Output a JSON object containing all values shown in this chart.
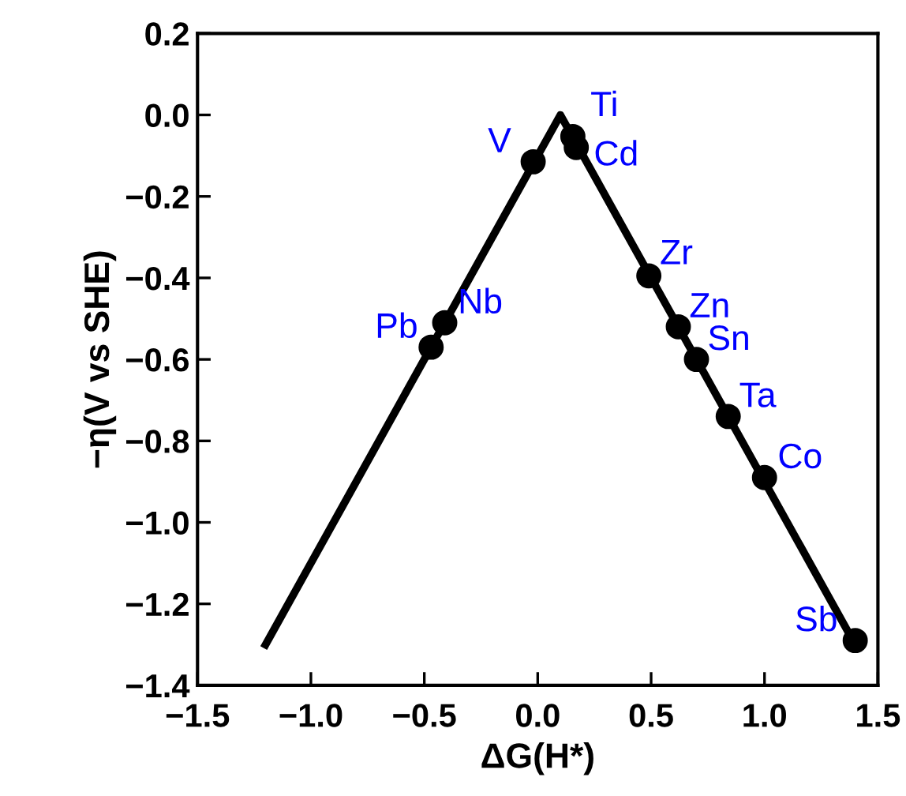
{
  "chart_data": {
    "type": "scatter",
    "xlabel": "ΔG(H*)",
    "ylabel": "−η(V vs SHE)",
    "xlim": [
      -1.5,
      1.5
    ],
    "ylim": [
      -1.4,
      0.2
    ],
    "xticks": [
      {
        "value": -1.5,
        "label": "−1.5"
      },
      {
        "value": -1.0,
        "label": "−1.0"
      },
      {
        "value": -0.5,
        "label": "−0.5"
      },
      {
        "value": 0.0,
        "label": "0.0"
      },
      {
        "value": 0.5,
        "label": "0.5"
      },
      {
        "value": 1.0,
        "label": "1.0"
      },
      {
        "value": 1.5,
        "label": "1.5"
      }
    ],
    "yticks": [
      {
        "value": 0.2,
        "label": "0.2"
      },
      {
        "value": 0.0,
        "label": "0.0"
      },
      {
        "value": -0.2,
        "label": "−0.2"
      },
      {
        "value": -0.4,
        "label": "−0.4"
      },
      {
        "value": -0.6,
        "label": "−0.6"
      },
      {
        "value": -0.8,
        "label": "−0.8"
      },
      {
        "value": -1.0,
        "label": "−1.0"
      },
      {
        "value": -1.2,
        "label": "−1.2"
      },
      {
        "value": -1.4,
        "label": "−1.4"
      }
    ],
    "grid": false,
    "legend": false,
    "series": [
      {
        "type": "line",
        "color": "#000000",
        "marker": "none",
        "line_style": "solid",
        "x": [
          -1.2,
          0.1,
          1.4
        ],
        "values": [
          -1.3,
          0.0,
          -1.3
        ]
      },
      {
        "color": "#000000",
        "marker": "circle",
        "x": [
          -0.02,
          0.155,
          0.17,
          0.49,
          -0.41,
          -0.47,
          0.62,
          0.7,
          0.84,
          1.0,
          1.4
        ],
        "values": [
          -0.115,
          -0.053,
          -0.08,
          -0.395,
          -0.51,
          -0.57,
          -0.52,
          -0.6,
          -0.74,
          -0.89,
          -1.29
        ]
      }
    ],
    "annotations": [
      {
        "text": "V",
        "x": -0.02,
        "y": -0.115
      },
      {
        "text": "Ti",
        "x": 0.155,
        "y": -0.053
      },
      {
        "text": "Cd",
        "x": 0.17,
        "y": -0.08
      },
      {
        "text": "Zr",
        "x": 0.49,
        "y": -0.395
      },
      {
        "text": "Nb",
        "x": -0.41,
        "y": -0.51
      },
      {
        "text": "Pb",
        "x": -0.47,
        "y": -0.57
      },
      {
        "text": "Zn",
        "x": 0.62,
        "y": -0.52
      },
      {
        "text": "Sn",
        "x": 0.7,
        "y": -0.6
      },
      {
        "text": "Ta",
        "x": 0.84,
        "y": -0.74
      },
      {
        "text": "Co",
        "x": 1.0,
        "y": -0.89
      },
      {
        "text": "Sb",
        "x": 1.4,
        "y": -1.29
      }
    ]
  }
}
